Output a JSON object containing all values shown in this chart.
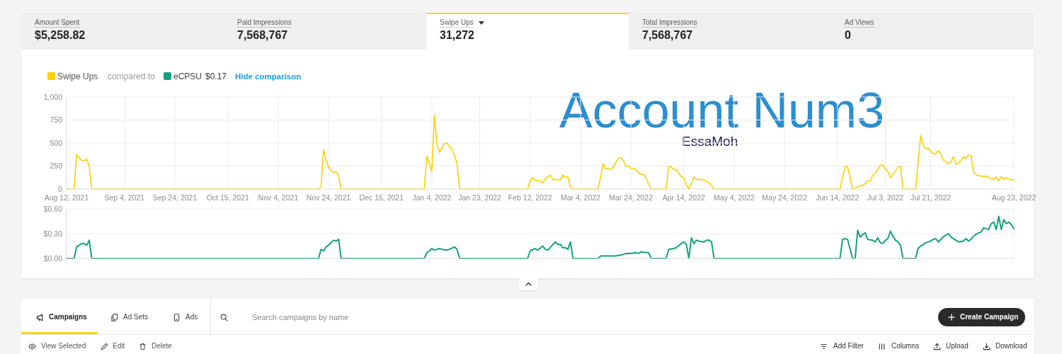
{
  "chart_data": [
    {
      "type": "other",
      "annotations": [
        "Amount Spent",
        "$5,258.82",
        "Paid Impressions",
        "7,568,767",
        "Swipe Ups",
        "31,272",
        "Total Impressions",
        "7,568,767",
        "Ad Views",
        "0"
      ]
    },
    {
      "type": "line",
      "legend": "top left",
      "grid": true,
      "x": [
        "2021-08-12",
        "2021-08-15",
        "2021-08-16",
        "2021-08-18",
        "2021-08-19",
        "2021-08-20",
        "2021-08-21",
        "2021-08-22",
        "2021-11-20",
        "2021-11-21",
        "2021-11-22",
        "2021-11-23",
        "2021-11-24",
        "2021-11-25",
        "2021-11-26",
        "2021-11-27",
        "2021-11-28",
        "2021-11-29",
        "2022-01-01",
        "2022-01-02",
        "2022-01-03",
        "2022-01-04",
        "2022-01-05",
        "2022-01-06",
        "2022-01-07",
        "2022-01-08",
        "2022-01-09",
        "2022-01-10",
        "2022-01-11",
        "2022-01-12",
        "2022-01-13",
        "2022-01-14",
        "2022-01-15",
        "2022-02-11",
        "2022-02-12",
        "2022-02-13",
        "2022-02-14",
        "2022-02-15",
        "2022-02-16",
        "2022-02-17",
        "2022-02-18",
        "2022-02-19",
        "2022-02-20",
        "2022-02-21",
        "2022-02-22",
        "2022-02-23",
        "2022-02-24",
        "2022-02-25",
        "2022-02-26",
        "2022-02-27",
        "2022-02-28",
        "2022-03-01",
        "2022-03-11",
        "2022-03-13",
        "2022-03-14",
        "2022-03-15",
        "2022-03-16",
        "2022-03-17",
        "2022-03-18",
        "2022-03-19",
        "2022-03-20",
        "2022-03-21",
        "2022-03-22",
        "2022-03-23",
        "2022-03-24",
        "2022-03-25",
        "2022-03-26",
        "2022-03-27",
        "2022-03-28",
        "2022-03-29",
        "2022-03-30",
        "2022-03-31",
        "2022-04-01",
        "2022-04-07",
        "2022-04-08",
        "2022-04-09",
        "2022-04-10",
        "2022-04-11",
        "2022-04-12",
        "2022-04-13",
        "2022-04-14",
        "2022-04-15",
        "2022-04-16",
        "2022-04-17",
        "2022-04-18",
        "2022-04-19",
        "2022-04-20",
        "2022-04-21",
        "2022-04-22",
        "2022-04-23",
        "2022-04-24",
        "2022-04-25",
        "2022-04-26",
        "2022-06-15",
        "2022-06-17",
        "2022-06-18",
        "2022-06-20",
        "2022-06-21",
        "2022-06-23",
        "2022-06-24",
        "2022-06-25",
        "2022-06-26",
        "2022-06-27",
        "2022-06-28",
        "2022-06-29",
        "2022-06-30",
        "2022-07-01",
        "2022-07-02",
        "2022-07-03",
        "2022-07-04",
        "2022-07-05",
        "2022-07-06",
        "2022-07-07",
        "2022-07-08",
        "2022-07-09",
        "2022-07-10",
        "2022-07-15",
        "2022-07-17",
        "2022-07-18",
        "2022-07-19",
        "2022-07-20",
        "2022-07-21",
        "2022-07-22",
        "2022-07-23",
        "2022-07-24",
        "2022-07-25",
        "2022-07-26",
        "2022-07-27",
        "2022-07-28",
        "2022-07-29",
        "2022-07-30",
        "2022-07-31",
        "2022-08-01",
        "2022-08-02",
        "2022-08-03",
        "2022-08-04",
        "2022-08-05",
        "2022-08-06",
        "2022-08-07",
        "2022-08-08",
        "2022-08-09",
        "2022-08-11",
        "2022-08-12",
        "2022-08-13",
        "2022-08-15",
        "2022-08-16",
        "2022-08-17",
        "2022-08-18",
        "2022-08-19",
        "2022-08-20",
        "2022-08-21",
        "2022-08-23"
      ],
      "series": [
        {
          "name": "Swipe Ups",
          "color": "#fdd000",
          "values": [
            0,
            0,
            375,
            310,
            305,
            325,
            250,
            0,
            0,
            25,
            430,
            310,
            240,
            200,
            175,
            190,
            140,
            0,
            0,
            360,
            280,
            195,
            805,
            480,
            400,
            450,
            495,
            500,
            460,
            435,
            365,
            275,
            0,
            0,
            90,
            125,
            90,
            95,
            85,
            65,
            110,
            135,
            150,
            105,
            100,
            100,
            100,
            150,
            130,
            130,
            20,
            0,
            0,
            275,
            220,
            225,
            210,
            240,
            290,
            330,
            345,
            310,
            240,
            250,
            225,
            225,
            210,
            175,
            160,
            155,
            125,
            60,
            0,
            0,
            250,
            240,
            215,
            210,
            170,
            135,
            120,
            45,
            0,
            60,
            130,
            105,
            105,
            105,
            95,
            85,
            70,
            35,
            0,
            0,
            245,
            245,
            0,
            5,
            40,
            35,
            60,
            90,
            85,
            150,
            175,
            215,
            260,
            260,
            225,
            190,
            125,
            160,
            195,
            240,
            245,
            0,
            0,
            580,
            480,
            435,
            445,
            410,
            385,
            380,
            420,
            385,
            315,
            295,
            275,
            295,
            350,
            270,
            280,
            310,
            350,
            335,
            370,
            360,
            185,
            155,
            145,
            135,
            140,
            125,
            105,
            130,
            85,
            135,
            105,
            125,
            110,
            95
          ]
        }
      ],
      "xlim": [
        "2021-08-12",
        "2022-08-23"
      ],
      "xticks": [
        {
          "value": "2021-08-12",
          "label": "Aug 12, 2021"
        },
        {
          "value": "2021-09-04",
          "label": "Sep 4, 2021"
        },
        {
          "value": "2021-09-24",
          "label": "Sep 24, 2021"
        },
        {
          "value": "2021-10-15",
          "label": "Oct 15, 2021"
        },
        {
          "value": "2021-11-04",
          "label": "Nov 4, 2021"
        },
        {
          "value": "2021-11-24",
          "label": "Nov 24, 2021"
        },
        {
          "value": "2021-12-15",
          "label": "Dec 15, 2021"
        },
        {
          "value": "2022-01-04",
          "label": "Jan 4, 2022"
        },
        {
          "value": "2022-01-23",
          "label": "Jan 23, 2022"
        },
        {
          "value": "2022-02-12",
          "label": "Feb 12, 2022"
        },
        {
          "value": "2022-03-04",
          "label": "Mar 4, 2022"
        },
        {
          "value": "2022-03-24",
          "label": "Mar 24, 2022"
        },
        {
          "value": "2022-04-14",
          "label": "Apr 14, 2022"
        },
        {
          "value": "2022-05-04",
          "label": "May 4, 2022"
        },
        {
          "value": "2022-05-24",
          "label": "May 24, 2022"
        },
        {
          "value": "2022-06-14",
          "label": "Jun 14, 2022"
        },
        {
          "value": "2022-07-03",
          "label": "Jul 3, 2022"
        },
        {
          "value": "2022-07-21",
          "label": "Jul 21, 2022"
        },
        {
          "value": "2022-08-23",
          "label": "Aug 23, 2022"
        }
      ],
      "ylim": [
        0,
        1000
      ],
      "yticks": [
        0,
        250,
        500,
        750,
        {
          "value": 1000,
          "label": "1,000"
        }
      ],
      "annotations": [
        "compared to",
        "Account Num3",
        "EssaMoh"
      ]
    },
    {
      "type": "line",
      "legend": "top left",
      "grid": true,
      "tick_labels": "y",
      "x": [
        "2021-08-12",
        "2021-08-15",
        "2021-08-16",
        "2021-08-18",
        "2021-08-19",
        "2021-08-20",
        "2021-08-21",
        "2021-08-22",
        "2021-11-20",
        "2021-11-21",
        "2021-11-22",
        "2021-11-23",
        "2021-11-24",
        "2021-11-26",
        "2021-11-27",
        "2021-11-28",
        "2021-11-29",
        "2022-01-01",
        "2022-01-02",
        "2022-01-03",
        "2022-01-04",
        "2022-01-05",
        "2022-01-06",
        "2022-01-07",
        "2022-01-08",
        "2022-01-10",
        "2022-01-11",
        "2022-01-13",
        "2022-01-14",
        "2022-01-15",
        "2022-02-11",
        "2022-02-12",
        "2022-02-14",
        "2022-02-15",
        "2022-02-17",
        "2022-02-18",
        "2022-02-19",
        "2022-02-22",
        "2022-02-23",
        "2022-02-24",
        "2022-02-25",
        "2022-02-26",
        "2022-02-27",
        "2022-02-28",
        "2022-03-01",
        "2022-03-11",
        "2022-03-12",
        "2022-03-15",
        "2022-03-18",
        "2022-03-20",
        "2022-03-22",
        "2022-03-24",
        "2022-03-26",
        "2022-03-27",
        "2022-03-28",
        "2022-03-30",
        "2022-03-31",
        "2022-04-01",
        "2022-04-07",
        "2022-04-08",
        "2022-04-10",
        "2022-04-11",
        "2022-04-13",
        "2022-04-14",
        "2022-04-15",
        "2022-04-16",
        "2022-04-17",
        "2022-04-18",
        "2022-04-19",
        "2022-04-20",
        "2022-04-22",
        "2022-04-23",
        "2022-04-24",
        "2022-04-25",
        "2022-04-26",
        "2022-06-15",
        "2022-06-16",
        "2022-06-17",
        "2022-06-18",
        "2022-06-20",
        "2022-06-21",
        "2022-06-22",
        "2022-06-23",
        "2022-06-24",
        "2022-06-25",
        "2022-06-26",
        "2022-06-28",
        "2022-06-29",
        "2022-06-30",
        "2022-07-01",
        "2022-07-02",
        "2022-07-03",
        "2022-07-04",
        "2022-07-05",
        "2022-07-06",
        "2022-07-07",
        "2022-07-08",
        "2022-07-09",
        "2022-07-10",
        "2022-07-15",
        "2022-07-16",
        "2022-07-17",
        "2022-07-19",
        "2022-07-20",
        "2022-07-21",
        "2022-07-22",
        "2022-07-23",
        "2022-07-24",
        "2022-07-26",
        "2022-07-28",
        "2022-07-29",
        "2022-07-31",
        "2022-08-01",
        "2022-08-03",
        "2022-08-04",
        "2022-08-05",
        "2022-08-06",
        "2022-08-07",
        "2022-08-09",
        "2022-08-10",
        "2022-08-11",
        "2022-08-13",
        "2022-08-14",
        "2022-08-15",
        "2022-08-16",
        "2022-08-17",
        "2022-08-18",
        "2022-08-19",
        "2022-08-20",
        "2022-08-21",
        "2022-08-22",
        "2022-08-23"
      ],
      "series": [
        {
          "name": "eCPSU",
          "color": "#14a27c",
          "values": [
            0,
            0,
            0.14,
            0.18,
            0.18,
            0.16,
            0.22,
            0,
            0,
            0.11,
            0.09,
            0.14,
            0.16,
            0.22,
            0.21,
            0.23,
            0,
            0,
            0.07,
            0.09,
            0.12,
            0.1,
            0.11,
            0.12,
            0.11,
            0.1,
            0.11,
            0.14,
            0.11,
            0,
            0,
            0.09,
            0.12,
            0.1,
            0.15,
            0.11,
            0.1,
            0.2,
            0.17,
            0.17,
            0.13,
            0.13,
            0.11,
            0.2,
            0,
            0,
            0.03,
            0.03,
            0.03,
            0.04,
            0.06,
            0.06,
            0.07,
            0.06,
            0.08,
            0.07,
            0.07,
            0,
            0,
            0.11,
            0.12,
            0.13,
            0.18,
            0.2,
            0.17,
            0,
            0.25,
            0.18,
            0.22,
            0.21,
            0.2,
            0.22,
            0.22,
            0.2,
            0,
            0,
            0.23,
            0.24,
            0.23,
            0,
            0,
            0.34,
            0.26,
            0.29,
            0.31,
            0.23,
            0.22,
            0.2,
            0.25,
            0.19,
            0.18,
            0.22,
            0.24,
            0.33,
            0.27,
            0.22,
            0.2,
            0.16,
            0,
            0,
            0.12,
            0.15,
            0.19,
            0.2,
            0.21,
            0.23,
            0.24,
            0.2,
            0.26,
            0.3,
            0.26,
            0.22,
            0.2,
            0.21,
            0.24,
            0.21,
            0.23,
            0.27,
            0.31,
            0.32,
            0.37,
            0.35,
            0.42,
            0.44,
            0.35,
            0.51,
            0.35,
            0.47,
            0.42,
            0.44,
            0.41,
            0.36
          ]
        }
      ],
      "xlim": [
        "2021-08-12",
        "2022-08-23"
      ],
      "xticks": [
        "2021-08-12",
        "2021-09-04",
        "2021-09-24",
        "2021-10-15",
        "2021-11-04",
        "2021-11-24",
        "2021-12-15",
        "2022-01-04",
        "2022-01-23",
        "2022-02-12",
        "2022-03-04",
        "2022-03-24",
        "2022-04-14",
        "2022-05-04",
        "2022-05-24",
        "2022-06-14",
        "2022-07-03",
        "2022-07-21",
        "2022-08-23"
      ],
      "ylim": [
        0,
        0.6
      ],
      "yticks": [
        {
          "value": 0,
          "label": "$0.00"
        },
        {
          "value": 0.3,
          "label": "$0.30"
        },
        {
          "value": 0.6,
          "label": "$0.60"
        }
      ],
      "annotations": [
        "$0.17",
        "Hide comparison"
      ]
    },
    {
      "type": "other",
      "annotations": [
        "Campaigns",
        "Ad Sets",
        "Ads",
        "Search campaigns by name",
        "Create Campaign",
        "View Selected",
        "Edit",
        "Delete",
        "Add Filter",
        "Columns",
        "Upload",
        "Download"
      ]
    }
  ]
}
